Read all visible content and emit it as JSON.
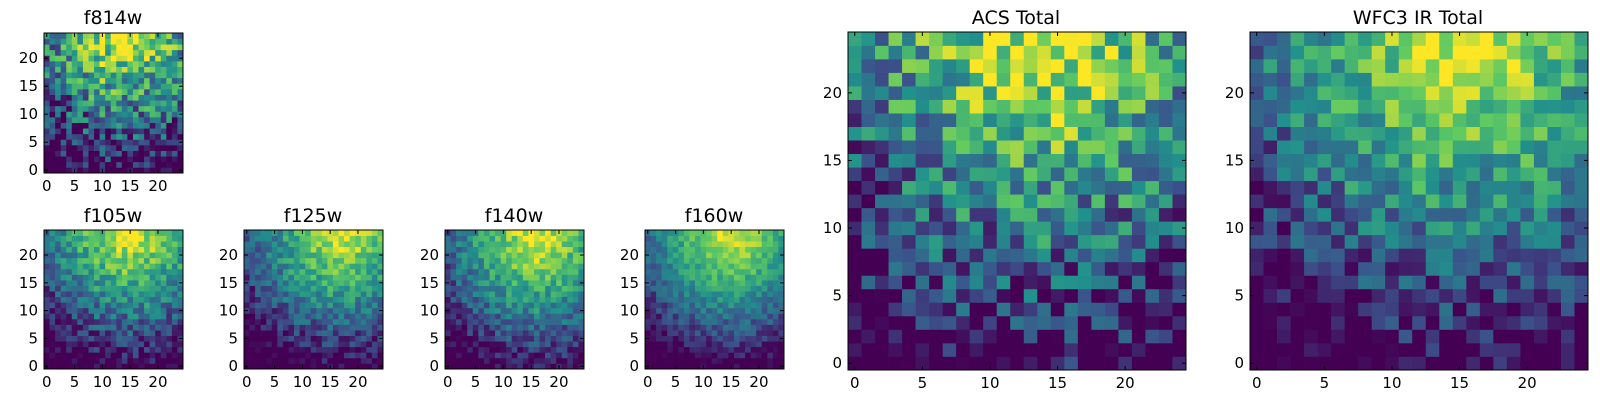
{
  "chart_data": [
    {
      "type": "heatmap",
      "id": "f814w",
      "title": "f814w",
      "grid_size": 25,
      "xlim": [
        -0.5,
        24.5
      ],
      "ylim": [
        -0.5,
        24.5
      ],
      "xticks": [
        0,
        5,
        10,
        15,
        20
      ],
      "yticks": [
        0,
        5,
        10,
        15,
        20
      ],
      "tick_labels": [
        "0",
        "5",
        "10",
        "15",
        "20"
      ],
      "colormap": "viridis",
      "pattern": "noisy gradient, brightest at top center-right",
      "hot_x": 14,
      "hot_y": 24,
      "noise": 0.32,
      "seed": 11
    },
    {
      "type": "heatmap",
      "id": "f105w",
      "title": "f105w",
      "grid_size": 25,
      "xlim": [
        -0.5,
        24.5
      ],
      "ylim": [
        -0.5,
        24.5
      ],
      "xticks": [
        0,
        5,
        10,
        15,
        20
      ],
      "yticks": [
        0,
        5,
        10,
        15,
        20
      ],
      "tick_labels": [
        "0",
        "5",
        "10",
        "15",
        "20"
      ],
      "colormap": "viridis",
      "pattern": "gradient, brightest at top center-right",
      "hot_x": 15,
      "hot_y": 24,
      "noise": 0.18,
      "seed": 23
    },
    {
      "type": "heatmap",
      "id": "f125w",
      "title": "f125w",
      "grid_size": 25,
      "xlim": [
        -0.5,
        24.5
      ],
      "ylim": [
        -0.5,
        24.5
      ],
      "xticks": [
        0,
        5,
        10,
        15,
        20
      ],
      "yticks": [
        0,
        5,
        10,
        15,
        20
      ],
      "tick_labels": [
        "0",
        "5",
        "10",
        "15",
        "20"
      ],
      "colormap": "viridis",
      "pattern": "gradient, brightest at top right",
      "hot_x": 17,
      "hot_y": 24,
      "noise": 0.16,
      "seed": 37
    },
    {
      "type": "heatmap",
      "id": "f140w",
      "title": "f140w",
      "grid_size": 25,
      "xlim": [
        -0.5,
        24.5
      ],
      "ylim": [
        -0.5,
        24.5
      ],
      "xticks": [
        0,
        5,
        10,
        15,
        20
      ],
      "yticks": [
        0,
        5,
        10,
        15,
        20
      ],
      "tick_labels": [
        "0",
        "5",
        "10",
        "15",
        "20"
      ],
      "colormap": "viridis",
      "pattern": "gradient, brightest at top center-right",
      "hot_x": 16,
      "hot_y": 23,
      "noise": 0.16,
      "seed": 41
    },
    {
      "type": "heatmap",
      "id": "f160w",
      "title": "f160w",
      "grid_size": 25,
      "xlim": [
        -0.5,
        24.5
      ],
      "ylim": [
        -0.5,
        24.5
      ],
      "xticks": [
        0,
        5,
        10,
        15,
        20
      ],
      "yticks": [
        0,
        5,
        10,
        15,
        20
      ],
      "tick_labels": [
        "0",
        "5",
        "10",
        "15",
        "20"
      ],
      "colormap": "viridis",
      "pattern": "gradient, brightest at top center-right",
      "hot_x": 15,
      "hot_y": 24,
      "noise": 0.12,
      "seed": 53
    },
    {
      "type": "heatmap",
      "id": "acs-total",
      "title": "ACS Total",
      "grid_size": 25,
      "xlim": [
        -0.5,
        24.5
      ],
      "ylim": [
        -0.5,
        24.5
      ],
      "xticks": [
        0,
        5,
        10,
        15,
        20
      ],
      "yticks": [
        0,
        5,
        10,
        15,
        20
      ],
      "tick_labels": [
        "0",
        "5",
        "10",
        "15",
        "20"
      ],
      "colormap": "viridis",
      "pattern": "noisy gradient, brightest at top center-right",
      "hot_x": 14,
      "hot_y": 24,
      "noise": 0.3,
      "seed": 67
    },
    {
      "type": "heatmap",
      "id": "wfc3-ir-total",
      "title": "WFC3 IR Total",
      "grid_size": 25,
      "xlim": [
        -0.5,
        24.5
      ],
      "ylim": [
        -0.5,
        24.5
      ],
      "xticks": [
        0,
        5,
        10,
        15,
        20
      ],
      "yticks": [
        0,
        5,
        10,
        15,
        20
      ],
      "tick_labels": [
        "0",
        "5",
        "10",
        "15",
        "20"
      ],
      "colormap": "viridis",
      "pattern": "gradient, brightest at top center-right",
      "hot_x": 15,
      "hot_y": 24,
      "noise": 0.22,
      "seed": 79
    }
  ],
  "colormap_stops": [
    "#440154",
    "#3b528b",
    "#21918c",
    "#5ec962",
    "#fde725"
  ]
}
